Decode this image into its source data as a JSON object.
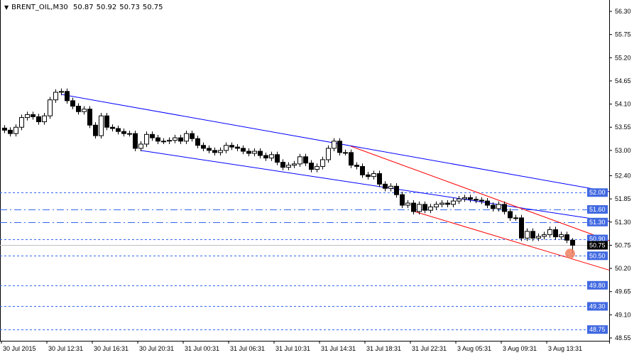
{
  "header": {
    "symbol": "BRENT_OIL,M30",
    "open": "50.87",
    "high": "50.92",
    "low": "50.73",
    "close": "50.75",
    "menu_icon": "triangle-down-icon"
  },
  "chart_data": {
    "type": "candlestick",
    "timeframe": "M30",
    "ylim": [
      48.55,
      56.3
    ],
    "grid": false,
    "y_ticks": [
      "56.30",
      "55.75",
      "55.20",
      "54.65",
      "54.10",
      "53.55",
      "53.00",
      "52.40",
      "51.85",
      "51.30",
      "50.75",
      "50.20",
      "49.65",
      "49.10",
      "48.55"
    ],
    "x_ticks": [
      "30 Jul 2015",
      "30 Jul 12:31",
      "30 Jul 16:31",
      "30 Jul 20:31",
      "31 Jul 00:31",
      "31 Jul 06:31",
      "31 Jul 10:31",
      "31 Jul 14:31",
      "31 Jul 18:31",
      "31 Jul 22:31",
      "3 Aug 05:31",
      "3 Aug 09:31",
      "3 Aug 13:31"
    ],
    "close": [
      53.48,
      53.4,
      53.55,
      53.78,
      53.85,
      53.8,
      53.68,
      53.82,
      54.2,
      54.38,
      54.4,
      54.18,
      54.05,
      53.92,
      53.98,
      53.6,
      53.35,
      53.82,
      53.55,
      53.52,
      53.45,
      53.4,
      53.4,
      53.05,
      53.15,
      53.38,
      53.3,
      53.22,
      53.22,
      53.24,
      53.3,
      53.22,
      53.4,
      53.28,
      53.12,
      53.05,
      53.0,
      52.95,
      53.0,
      53.12,
      53.08,
      53.05,
      52.98,
      52.93,
      52.98,
      52.88,
      52.82,
      52.9,
      52.72,
      52.6,
      52.65,
      52.68,
      52.85,
      52.7,
      52.55,
      52.62,
      52.78,
      53.05,
      53.22,
      52.95,
      52.95,
      52.65,
      52.62,
      52.42,
      52.38,
      52.45,
      52.2,
      52.1,
      52.15,
      51.95,
      51.7,
      51.75,
      51.55,
      51.72,
      51.58,
      51.66,
      51.72,
      51.75,
      51.72,
      51.8,
      51.85,
      51.88,
      51.84,
      51.82,
      51.8,
      51.7,
      51.62,
      51.72,
      51.55,
      51.4,
      51.4,
      50.92,
      51.08,
      50.92,
      50.96,
      51.0,
      51.12,
      50.95,
      51.0,
      50.87,
      50.75
    ],
    "last_candle": {
      "open": 50.87,
      "high": 50.92,
      "low": 50.73,
      "close": 50.75
    },
    "current_price": "50.75",
    "levels": [
      {
        "price": "52.00",
        "style": "dashed"
      },
      {
        "price": "51.60",
        "style": "dash-dot"
      },
      {
        "price": "51.30",
        "style": "dash-dot"
      },
      {
        "price": "50.90",
        "style": "dashed"
      },
      {
        "price": "50.50",
        "style": "dashed"
      },
      {
        "price": "49.80",
        "style": "dashed"
      },
      {
        "price": "49.30",
        "style": "dashed"
      },
      {
        "price": "48.75",
        "style": "dashed"
      }
    ],
    "trendlines": [
      {
        "color": "#0000ff",
        "from": [
          10,
          54.33
        ],
        "to": [
          108,
          52.02
        ]
      },
      {
        "color": "#0000ff",
        "from": [
          24,
          53.0
        ],
        "to": [
          108,
          51.32
        ]
      },
      {
        "color": "#ff0000",
        "from": [
          61,
          53.1
        ],
        "to": [
          108,
          50.86
        ]
      },
      {
        "color": "#ff0000",
        "from": [
          72,
          51.56
        ],
        "to": [
          108,
          50.16
        ]
      }
    ],
    "marker": {
      "candle": 100,
      "price": 50.55,
      "color": "#f08060"
    },
    "colors": {
      "level": "#3366ee",
      "label_bg": "#4169e1",
      "current_bg": "#000000",
      "current_line": "#c0c0c0",
      "bull": "#ffffff",
      "bear": "#000000"
    }
  }
}
